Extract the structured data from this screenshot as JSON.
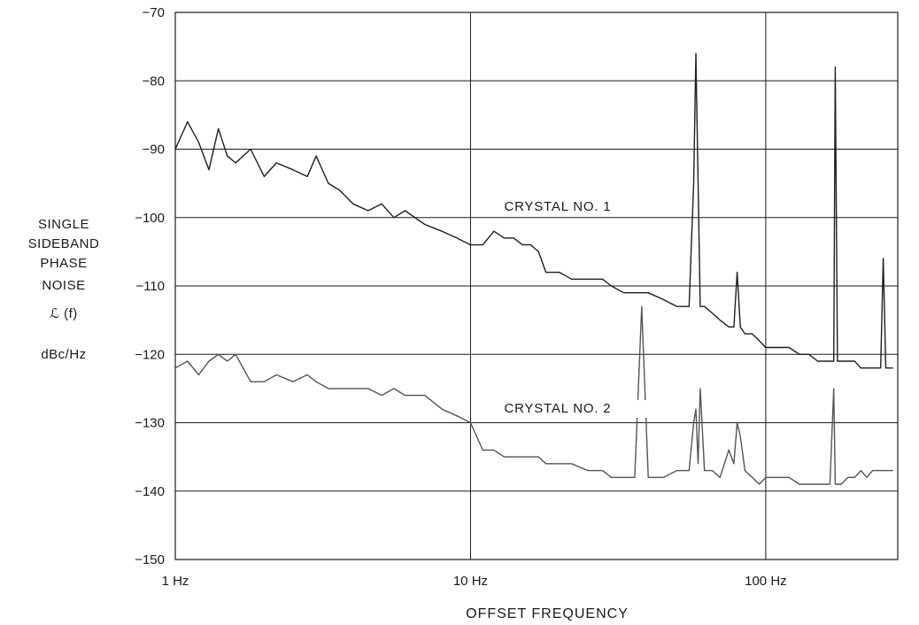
{
  "chart_data": {
    "type": "line",
    "xscale": "log",
    "xlim": [
      1,
      280
    ],
    "ylim": [
      -150,
      -70
    ],
    "grid": true,
    "xlabel": "OFFSET FREQUENCY",
    "ylabel_lines": [
      "SINGLE",
      "SIDEBAND",
      "PHASE",
      "NOISE",
      "ℒ (f)",
      "dBc/Hz"
    ],
    "y_ticks": [
      -70,
      -80,
      -90,
      -100,
      -110,
      -120,
      -130,
      -140,
      -150
    ],
    "y_tick_labels": [
      "−70",
      "−80",
      "−90",
      "−100",
      "−110",
      "−120",
      "−130",
      "−140",
      "−150"
    ],
    "x_ticks": [
      1,
      10,
      100
    ],
    "x_tick_labels": [
      "1 Hz",
      "10 Hz",
      "100 Hz"
    ],
    "annotations": [
      {
        "text": "CRYSTAL NO. 1",
        "x": 13,
        "y": -99
      },
      {
        "text": "CRYSTAL NO. 2",
        "x": 13,
        "y": -128.5
      }
    ],
    "series": [
      {
        "color": "#1f1f1f",
        "x": [
          1,
          1.1,
          1.2,
          1.3,
          1.4,
          1.5,
          1.6,
          1.8,
          2,
          2.2,
          2.5,
          2.8,
          3,
          3.3,
          3.6,
          4,
          4.5,
          5,
          5.5,
          6,
          7,
          8,
          9,
          10,
          11,
          12,
          13,
          14,
          15,
          16,
          17,
          18,
          20,
          22,
          25,
          28,
          30,
          33,
          36,
          40,
          45,
          50,
          55,
          57,
          58,
          59,
          60,
          62,
          66,
          70,
          75,
          78,
          80,
          82,
          85,
          90,
          95,
          100,
          110,
          120,
          130,
          140,
          150,
          160,
          165,
          170,
          172,
          175,
          180,
          190,
          200,
          210,
          220,
          230,
          240,
          245,
          250,
          255,
          260,
          270
        ],
        "y": [
          -90,
          -86,
          -89,
          -93,
          -87,
          -91,
          -92,
          -90,
          -94,
          -92,
          -93,
          -94,
          -91,
          -95,
          -96,
          -98,
          -99,
          -98,
          -100,
          -99,
          -101,
          -102,
          -103,
          -104,
          -104,
          -102,
          -103,
          -103,
          -104,
          -104,
          -105,
          -108,
          -108,
          -109,
          -109,
          -109,
          -110,
          -111,
          -111,
          -111,
          -112,
          -113,
          -113,
          -95,
          -76,
          -95,
          -113,
          -113,
          -114,
          -115,
          -116,
          -116,
          -108,
          -116,
          -117,
          -117,
          -118,
          -119,
          -119,
          -119,
          -120,
          -120,
          -121,
          -121,
          -121,
          -121,
          -78,
          -121,
          -121,
          -121,
          -121,
          -122,
          -122,
          -122,
          -122,
          -122,
          -106,
          -122,
          -122,
          -122
        ]
      },
      {
        "color": "#555555",
        "x": [
          1,
          1.1,
          1.2,
          1.3,
          1.4,
          1.5,
          1.6,
          1.8,
          2,
          2.2,
          2.5,
          2.8,
          3,
          3.3,
          3.6,
          4,
          4.5,
          5,
          5.5,
          6,
          7,
          8,
          9,
          10,
          11,
          12,
          13,
          14,
          15,
          16,
          17,
          18,
          20,
          22,
          25,
          28,
          30,
          33,
          36,
          38,
          40,
          45,
          50,
          55,
          57,
          58,
          59,
          60,
          62,
          66,
          70,
          75,
          78,
          80,
          82,
          85,
          90,
          95,
          100,
          110,
          120,
          130,
          140,
          150,
          160,
          165,
          170,
          172,
          175,
          180,
          190,
          200,
          210,
          220,
          230,
          240,
          245,
          250,
          255,
          260,
          270
        ],
        "y": [
          -122,
          -121,
          -123,
          -121,
          -120,
          -121,
          -120,
          -124,
          -124,
          -123,
          -124,
          -123,
          -124,
          -125,
          -125,
          -125,
          -125,
          -126,
          -125,
          -126,
          -126,
          -128,
          -129,
          -130,
          -134,
          -134,
          -135,
          -135,
          -135,
          -135,
          -135,
          -136,
          -136,
          -136,
          -137,
          -137,
          -138,
          -138,
          -138,
          -113,
          -138,
          -138,
          -137,
          -137,
          -130,
          -128,
          -136,
          -125,
          -137,
          -137,
          -138,
          -134,
          -136,
          -130,
          -132,
          -137,
          -138,
          -139,
          -138,
          -138,
          -138,
          -139,
          -139,
          -139,
          -139,
          -139,
          -125,
          -139,
          -139,
          -139,
          -138,
          -138,
          -137,
          -138,
          -137,
          -137,
          -137,
          -137,
          -137,
          -137,
          -137
        ]
      }
    ]
  }
}
